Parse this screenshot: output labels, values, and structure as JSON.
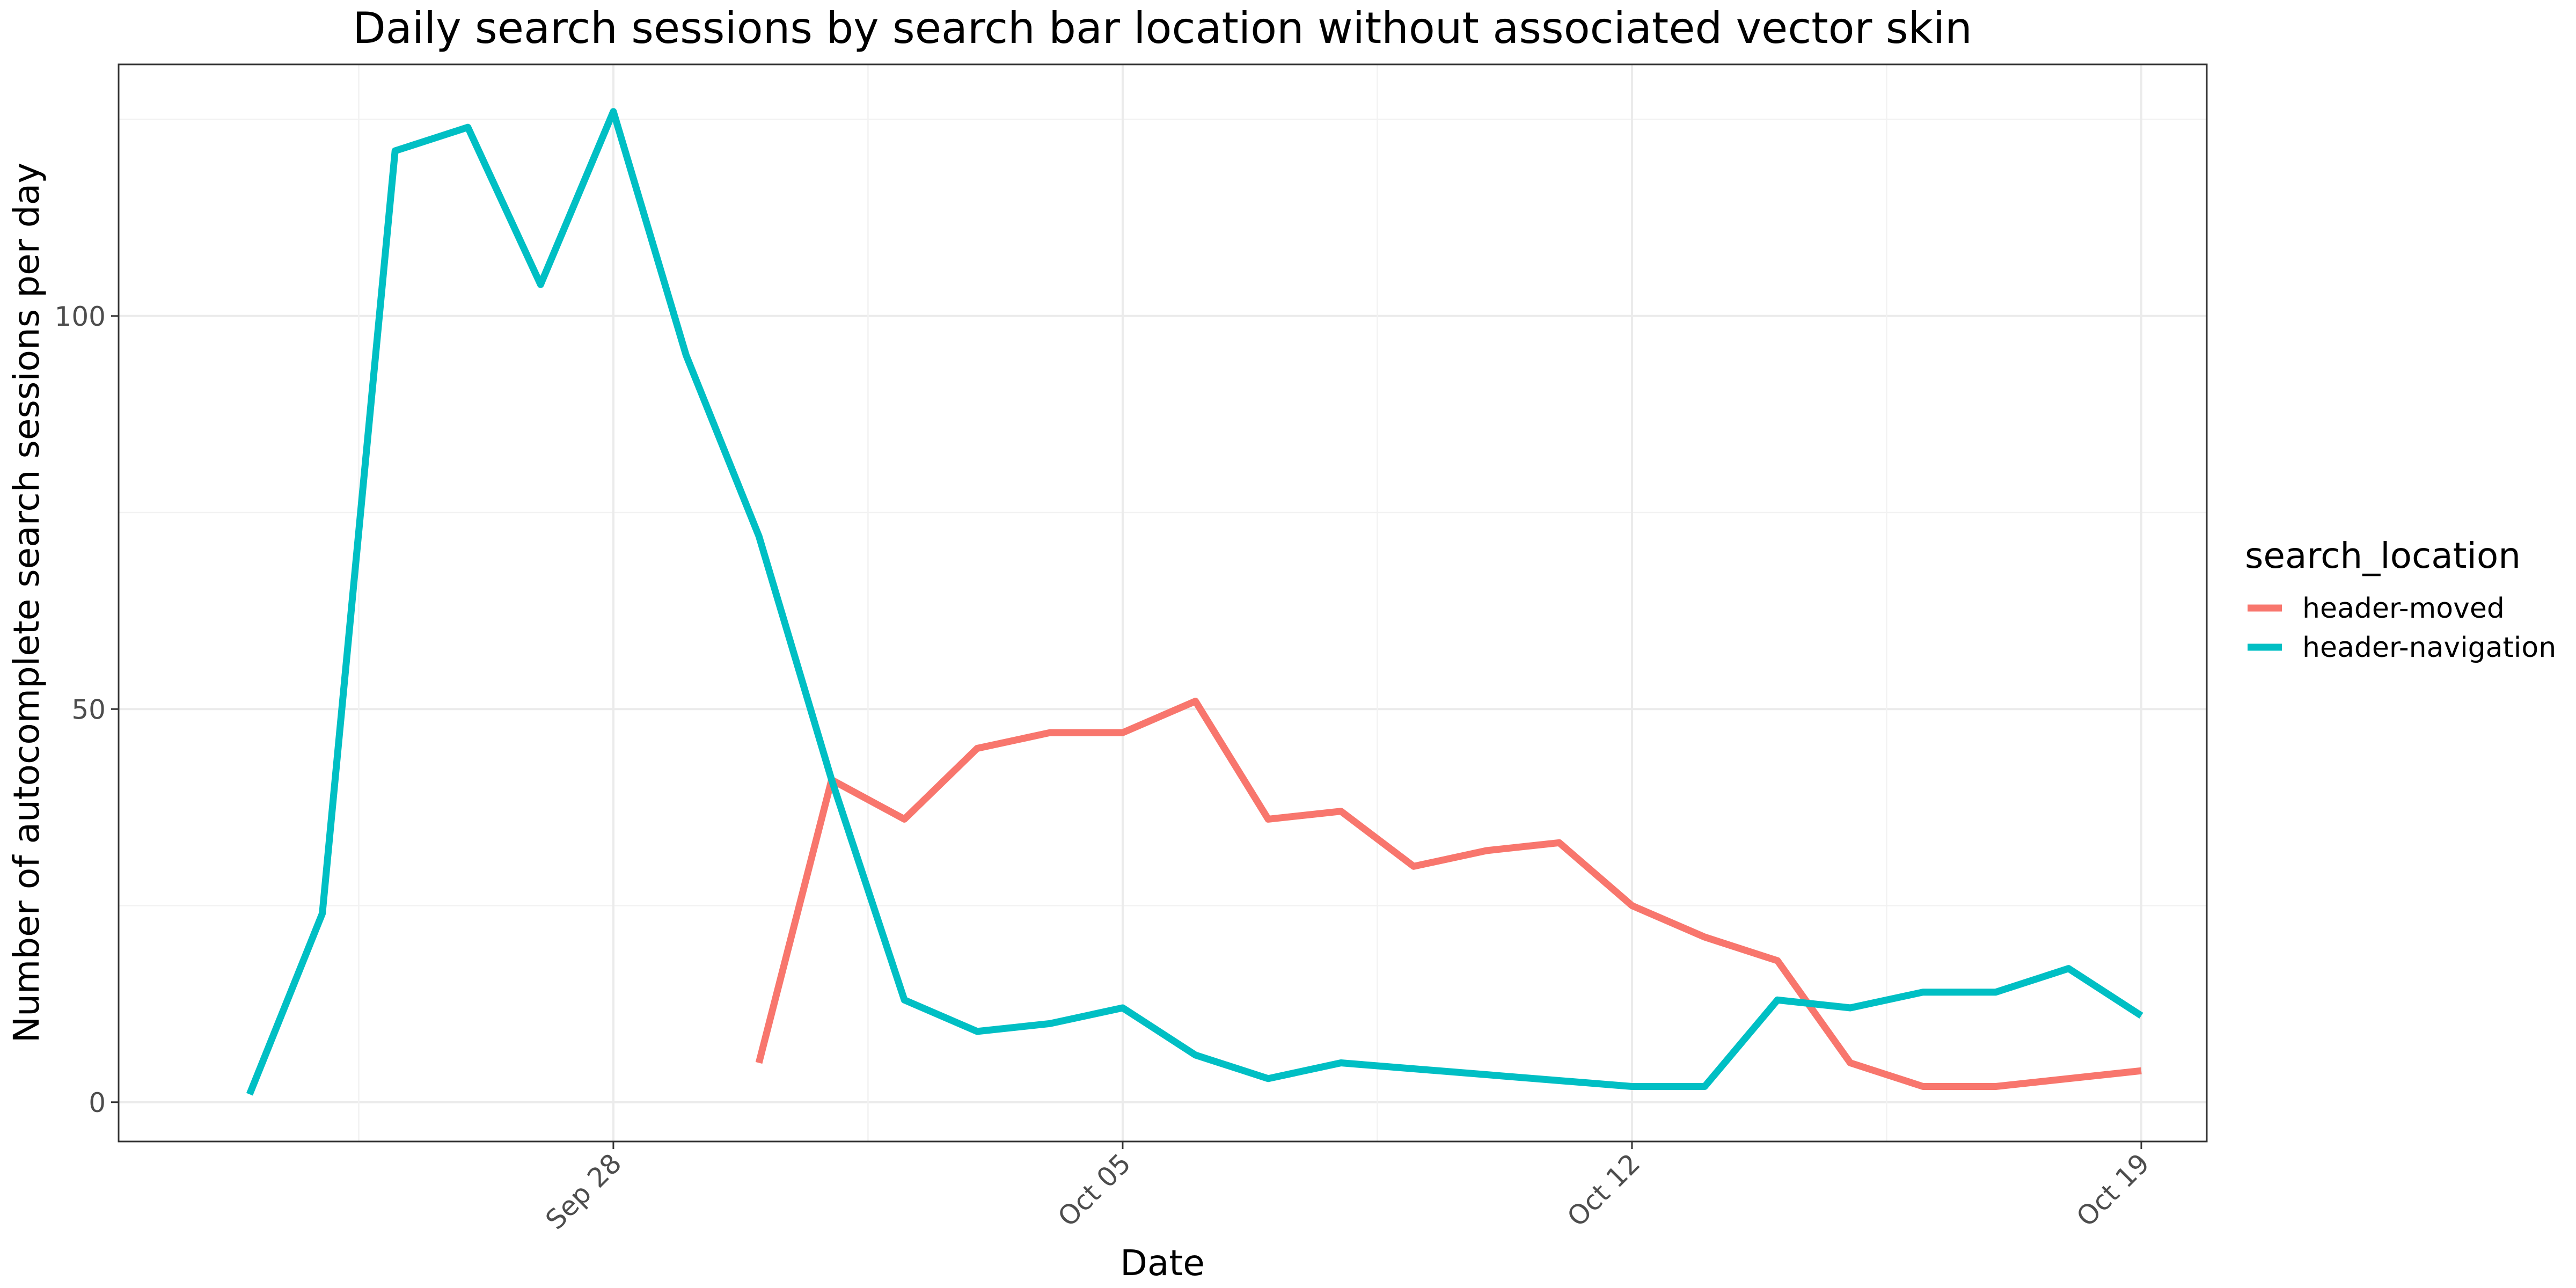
{
  "chart_data": {
    "type": "line",
    "title": "Daily search sessions by search bar location without associated vector skin",
    "xlabel": "Date",
    "ylabel": "Number of autocomplete search sessions per day",
    "x_scale": "date",
    "xlim": [
      "2020-09-22",
      "2020-10-19"
    ],
    "ylim": [
      -5,
      132
    ],
    "x_ticks": [
      {
        "date": "2020-09-28",
        "label": "Sep 28"
      },
      {
        "date": "2020-10-05",
        "label": "Oct 05"
      },
      {
        "date": "2020-10-12",
        "label": "Oct 12"
      },
      {
        "date": "2020-10-19",
        "label": "Oct 19"
      }
    ],
    "y_ticks": [
      0,
      50,
      100
    ],
    "grid": true,
    "legend": {
      "title": "search_location",
      "position": "right"
    },
    "series": [
      {
        "name": "header-moved",
        "color": "#F8766D",
        "points": [
          {
            "x": "2020-09-30",
            "y": 5
          },
          {
            "x": "2020-10-01",
            "y": 41
          },
          {
            "x": "2020-10-02",
            "y": 36
          },
          {
            "x": "2020-10-03",
            "y": 45
          },
          {
            "x": "2020-10-04",
            "y": 47
          },
          {
            "x": "2020-10-05",
            "y": 47
          },
          {
            "x": "2020-10-06",
            "y": 51
          },
          {
            "x": "2020-10-07",
            "y": 36
          },
          {
            "x": "2020-10-08",
            "y": 37
          },
          {
            "x": "2020-10-09",
            "y": 30
          },
          {
            "x": "2020-10-10",
            "y": 32
          },
          {
            "x": "2020-10-11",
            "y": 33
          },
          {
            "x": "2020-10-12",
            "y": 25
          },
          {
            "x": "2020-10-13",
            "y": 21
          },
          {
            "x": "2020-10-14",
            "y": 18
          },
          {
            "x": "2020-10-15",
            "y": 5
          },
          {
            "x": "2020-10-16",
            "y": 2
          },
          {
            "x": "2020-10-17",
            "y": 2
          },
          {
            "x": "2020-10-18",
            "y": 3
          },
          {
            "x": "2020-10-19",
            "y": 4
          }
        ]
      },
      {
        "name": "header-navigation",
        "color": "#00BFC4",
        "points": [
          {
            "x": "2020-09-23",
            "y": 1
          },
          {
            "x": "2020-09-24",
            "y": 24
          },
          {
            "x": "2020-09-25",
            "y": 121
          },
          {
            "x": "2020-09-26",
            "y": 124
          },
          {
            "x": "2020-09-27",
            "y": 104
          },
          {
            "x": "2020-09-28",
            "y": 126
          },
          {
            "x": "2020-09-29",
            "y": 95
          },
          {
            "x": "2020-09-30",
            "y": 72
          },
          {
            "x": "2020-10-01",
            "y": 41
          },
          {
            "x": "2020-10-02",
            "y": 13
          },
          {
            "x": "2020-10-03",
            "y": 9
          },
          {
            "x": "2020-10-04",
            "y": 10
          },
          {
            "x": "2020-10-05",
            "y": 12
          },
          {
            "x": "2020-10-06",
            "y": 6
          },
          {
            "x": "2020-10-07",
            "y": 3
          },
          {
            "x": "2020-10-08",
            "y": 5
          },
          {
            "x": "2020-10-12",
            "y": 2
          },
          {
            "x": "2020-10-13",
            "y": 2
          },
          {
            "x": "2020-10-14",
            "y": 13
          },
          {
            "x": "2020-10-15",
            "y": 12
          },
          {
            "x": "2020-10-16",
            "y": 14
          },
          {
            "x": "2020-10-17",
            "y": 14
          },
          {
            "x": "2020-10-18",
            "y": 17
          },
          {
            "x": "2020-10-19",
            "y": 11
          }
        ]
      }
    ]
  }
}
